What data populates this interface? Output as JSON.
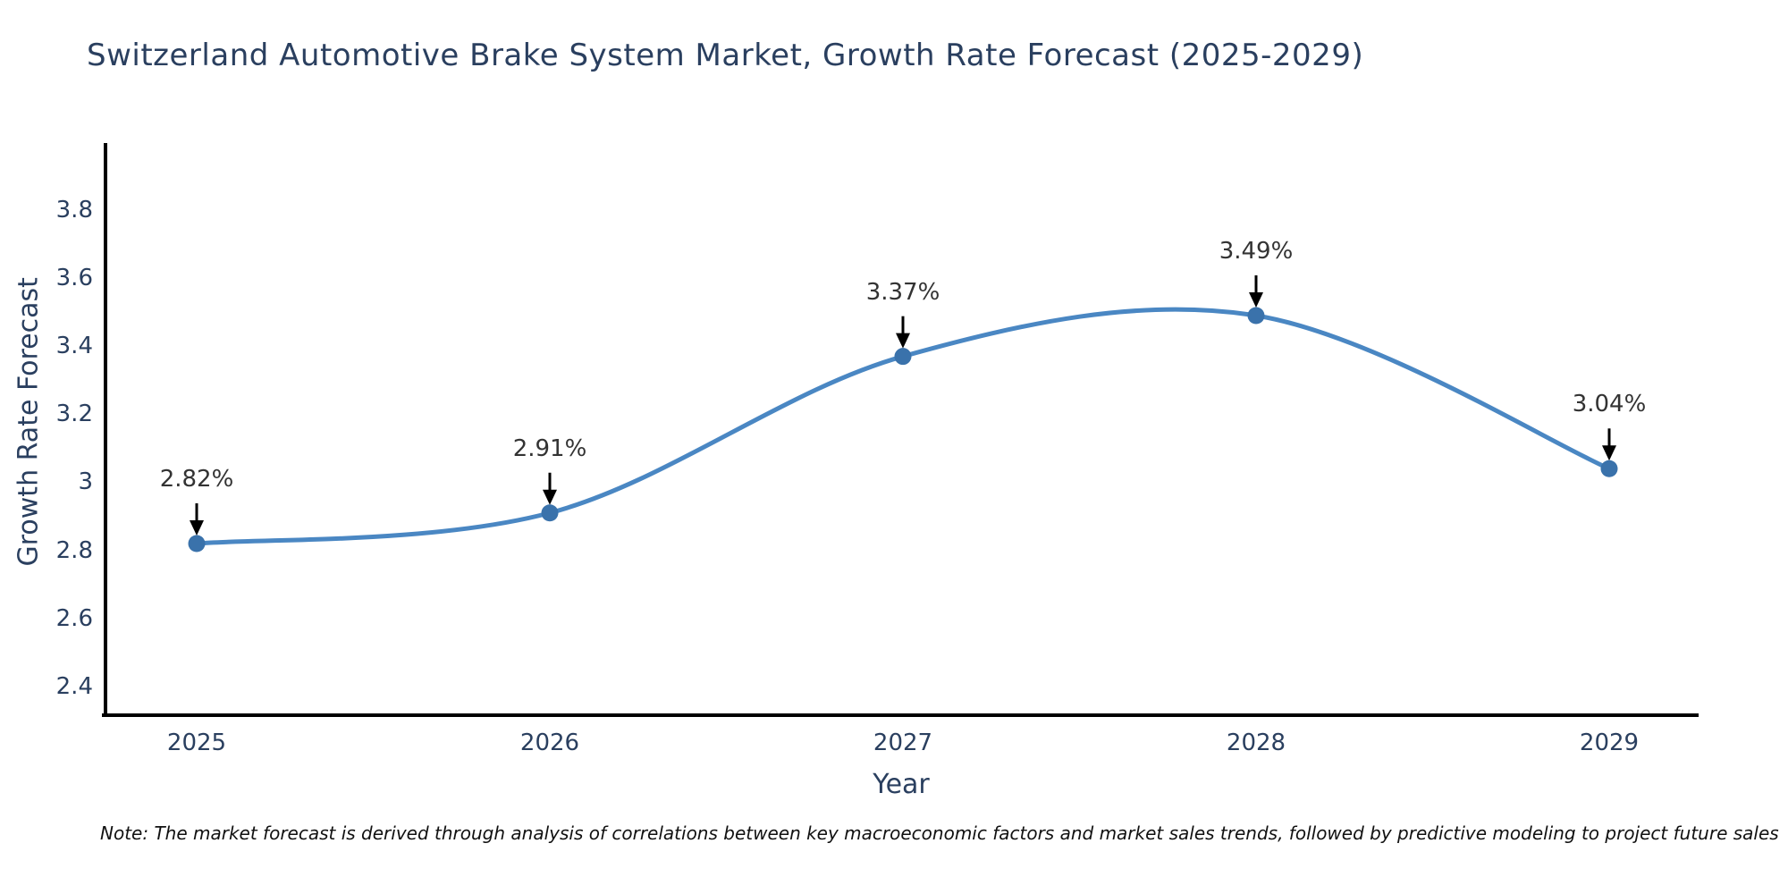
{
  "note": "Note: The market forecast is derived through analysis of correlations between key macroeconomic factors and market sales trends, followed by predictive modeling to project future sales",
  "chart_data": {
    "type": "line",
    "title": "Switzerland Automotive Brake System Market, Growth Rate Forecast (2025-2029)",
    "xlabel": "Year",
    "ylabel": "Growth Rate Forecast",
    "x": [
      2025,
      2026,
      2027,
      2028,
      2029
    ],
    "y": [
      2.82,
      2.91,
      3.37,
      3.49,
      3.04
    ],
    "point_labels": [
      "2.82%",
      "2.91%",
      "3.37%",
      "3.49%",
      "3.04%"
    ],
    "xtick_labels": [
      "2025",
      "2026",
      "2027",
      "2028",
      "2029"
    ],
    "ytick_values": [
      2.4,
      2.6,
      2.8,
      3.0,
      3.2,
      3.4,
      3.6,
      3.8
    ],
    "ytick_labels": [
      "2.4",
      "2.6",
      "2.8",
      "3",
      "3.2",
      "3.4",
      "3.6",
      "3.8"
    ],
    "xlim": [
      2024.74,
      2029.27
    ],
    "ylim": [
      2.31,
      4.0
    ],
    "line_shape": "spline",
    "grid": false,
    "legend": "none",
    "annotation_arrows": true,
    "colors": {
      "line": "#4a87c3",
      "marker": "#3a72ab",
      "axis": "#000000",
      "arrow": "#000000",
      "axis_text": "#2a3f5f",
      "annotation_text": "#333333",
      "background": "#ffffff"
    }
  }
}
